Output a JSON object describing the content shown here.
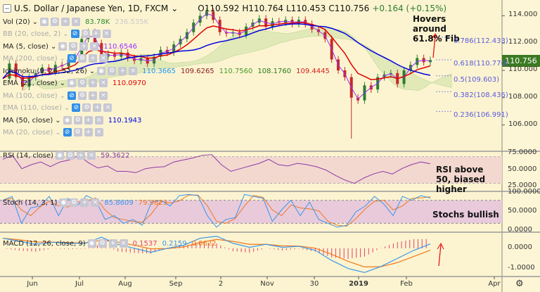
{
  "header": {
    "symbol": "U.S. Dollar / Japanese Yen, 1D, FXCM",
    "open": "O110.592",
    "high": "H110.764",
    "low": "L110.453",
    "close": "C110.756",
    "change": "+0.164 (+0.15%)"
  },
  "legend": [
    {
      "label": "Vol (20)",
      "values": [
        "83.78K",
        "236.535K"
      ],
      "colors": [
        "#2e8b2e",
        "#c9c9c9"
      ],
      "hidden": false
    },
    {
      "label": "BB (20, close, 2)",
      "values": [],
      "colors": [],
      "hidden": true
    },
    {
      "label": "MA (5, close)",
      "values": [
        "110.6546"
      ],
      "colors": [
        "#9b30ff"
      ],
      "hidden": false
    },
    {
      "label": "MA (200, close)",
      "values": [],
      "colors": [],
      "hidden": true
    },
    {
      "label": "Ichimoku (9, 26, 52, 26)",
      "values": [
        "110.3665",
        "109.6265",
        "110.7560",
        "108.1760",
        "109.4445"
      ],
      "colors": [
        "#2196f3",
        "#8b1a1a",
        "#4a9a2a",
        "#2a7a1a",
        "#d02020"
      ],
      "hidden": false
    },
    {
      "label": "EMA (21, close)",
      "values": [
        "110.0970"
      ],
      "colors": [
        "#e00000"
      ],
      "hidden": false
    },
    {
      "label": "MA (100, close)",
      "values": [],
      "colors": [],
      "hidden": true
    },
    {
      "label": "EMA (110, close)",
      "values": [],
      "colors": [],
      "hidden": true
    },
    {
      "label": "MA (50, close)",
      "values": [
        "110.1943"
      ],
      "colors": [
        "#0000e0"
      ],
      "hidden": false
    },
    {
      "label": "MA (20, close)",
      "values": [],
      "colors": [],
      "hidden": true
    }
  ],
  "last_price": "110.756",
  "annotations": {
    "fib_note": "Hovers around 61.8% Fib",
    "rsi_note": "RSI above 50, biased higher",
    "stoch_note": "Stochs bullish"
  },
  "panes": {
    "rsi": {
      "label": "RSI (14, close)",
      "value": "59.3622"
    },
    "stoch": {
      "label": "Stoch (14, 3, 1)",
      "k": "85.8609",
      "d": "79.9823"
    },
    "macd": {
      "label": "MACD (12, 26, close, 9)",
      "hist": "0.1537",
      "macd": "0.2159",
      "signal": "0.0622"
    }
  },
  "colors": {
    "up": "#2e7d32",
    "down": "#c62828",
    "ema21": "#e00000",
    "ma50": "#0000e0",
    "ma5": "#9b30ff",
    "rsi": "#8e3aa8",
    "stoch_k": "#3a96e8",
    "stoch_d": "#f07820",
    "macd": "#3a96e8",
    "signal": "#f07820",
    "hist": "#e04070"
  },
  "chart_data": {
    "type": "line",
    "price": {
      "ylim": [
        104.5,
        115
      ],
      "ticks": [
        "114.000",
        "112.000",
        "110.000",
        "108.000",
        "106.000"
      ],
      "close": [
        109.4,
        110.5,
        109.5,
        108.8,
        109.5,
        109.8,
        110.2,
        109.9,
        110.4,
        110.3,
        110.8,
        111.0,
        112.3,
        112.8,
        112.0,
        111.0,
        111.2,
        111.0,
        111.3,
        110.9,
        110.7,
        110.9,
        110.5,
        111.0,
        111.5,
        111.3,
        111.9,
        112.3,
        112.8,
        113.5,
        114.0,
        114.3,
        113.7,
        112.8,
        112.7,
        112.8,
        112.6,
        113.2,
        113.5,
        113.8,
        113.2,
        113.6,
        113.5,
        113.7,
        113.4,
        113.7,
        113.4,
        113.0,
        112.8,
        112.3,
        110.8,
        110.0,
        109.5,
        108.0,
        107.8,
        108.9,
        108.6,
        109.5,
        109.7,
        109.8,
        109.0,
        110.0,
        110.4,
        110.9,
        110.6,
        110.756
      ]
    },
    "fib": [
      {
        "label": "0.786(112.433)",
        "price": 112.433
      },
      {
        "label": "0.618(110.770)",
        "price": 110.77
      },
      {
        "label": "0.5(109.603)",
        "price": 109.603
      },
      {
        "label": "0.382(108.436)",
        "price": 108.436
      },
      {
        "label": "0.236(106.991)",
        "price": 106.991
      }
    ],
    "rsi": {
      "ylim": [
        18,
        78
      ],
      "ticks": [
        "75.0000",
        "50.0000",
        "25.0000"
      ],
      "bands": [
        30,
        70
      ],
      "values": [
        66,
        72,
        52,
        58,
        62,
        55,
        62,
        65,
        72,
        61,
        53,
        56,
        48,
        48,
        46,
        52,
        54,
        55,
        62,
        65,
        68,
        72,
        73,
        58,
        48,
        52,
        56,
        60,
        66,
        58,
        56,
        60,
        58,
        55,
        50,
        42,
        35,
        30,
        38,
        44,
        48,
        44,
        52,
        58,
        62,
        59.36
      ]
    },
    "stoch": {
      "ylim": [
        -3,
        103
      ],
      "ticks": [
        "100.0000",
        "50.0000",
        "0.0000"
      ],
      "bands": [
        20,
        80
      ],
      "k": [
        80,
        90,
        20,
        60,
        65,
        90,
        40,
        85,
        65,
        92,
        80,
        30,
        40,
        20,
        30,
        15,
        75,
        80,
        65,
        92,
        95,
        92,
        40,
        10,
        30,
        35,
        95,
        90,
        85,
        25,
        55,
        80,
        40,
        75,
        30,
        20,
        10,
        15,
        50,
        65,
        90,
        70,
        40,
        90,
        80,
        92,
        85.86
      ]
    },
    "macd": {
      "ylim": [
        -1.4,
        0.8
      ],
      "ticks": [
        "0.0000",
        "-1.0000"
      ],
      "macd": [
        0.5,
        0.35,
        0.2,
        0.3,
        0.25,
        0.25,
        0.55,
        0.2,
        0.0,
        -0.2,
        0.0,
        0.15,
        0.5,
        0.6,
        0.25,
        0.05,
        0.2,
        0.05,
        0.1,
        -0.1,
        -0.6,
        -1.0,
        -1.2,
        -0.9,
        -0.5,
        -0.1,
        0.2159
      ]
    },
    "x_ticks": [
      "Jun",
      "Jul",
      "Aug",
      "Sep",
      "2",
      "Nov",
      "30",
      "2019",
      "Feb",
      "Apr"
    ]
  }
}
